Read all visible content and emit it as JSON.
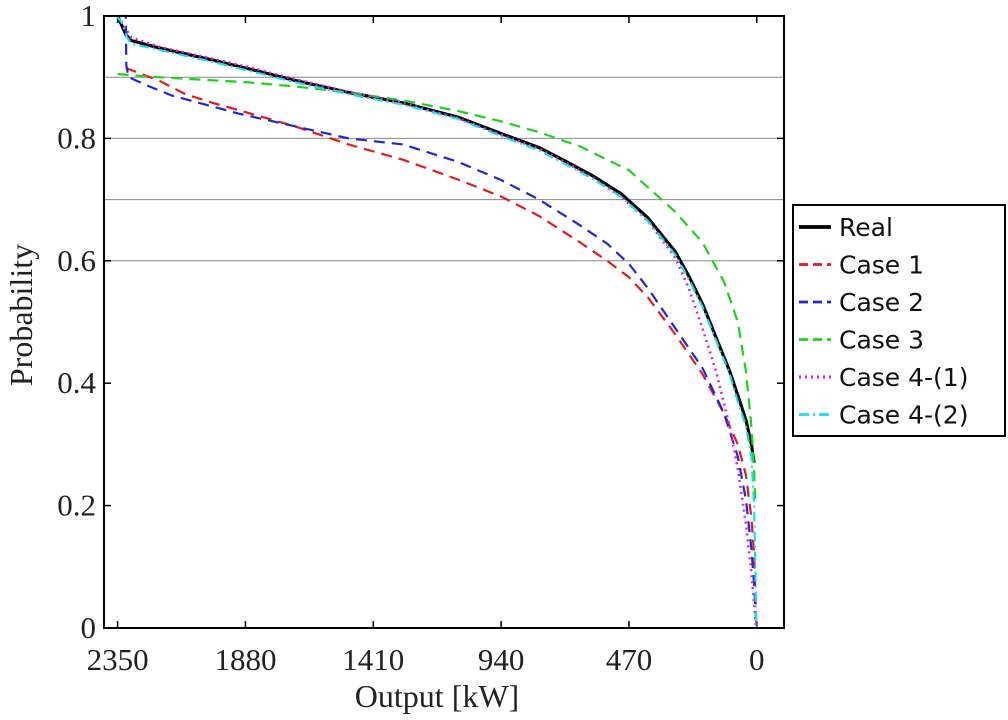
{
  "chart_data": {
    "type": "line",
    "title": "",
    "xlabel": "Output [kW]",
    "ylabel": "Probability",
    "xlim": [
      2400,
      -100
    ],
    "ylim": [
      0,
      1
    ],
    "x_reversed": true,
    "xticks": [
      2350,
      1880,
      1410,
      940,
      470,
      0
    ],
    "xtick_labels": [
      "2350",
      "1880",
      "1410",
      "940",
      "470",
      "0"
    ],
    "yticks": [
      0,
      0.2,
      0.4,
      0.6,
      0.8,
      1
    ],
    "ytick_labels": [
      "0",
      "0.2",
      "0.4",
      "0.6",
      "0.8",
      "1"
    ],
    "hlines": [
      0.6,
      0.7,
      0.8,
      0.9
    ],
    "legend_position": "right",
    "series": [
      {
        "name": "Real",
        "color": "#000000",
        "style": "solid",
        "points": [
          [
            2350,
            1.0
          ],
          [
            2340,
            0.99
          ],
          [
            2320,
            0.97
          ],
          [
            2300,
            0.96
          ],
          [
            2200,
            0.948
          ],
          [
            2100,
            0.938
          ],
          [
            2000,
            0.928
          ],
          [
            1880,
            0.915
          ],
          [
            1700,
            0.895
          ],
          [
            1500,
            0.875
          ],
          [
            1300,
            0.858
          ],
          [
            1100,
            0.835
          ],
          [
            940,
            0.808
          ],
          [
            800,
            0.785
          ],
          [
            700,
            0.762
          ],
          [
            600,
            0.738
          ],
          [
            500,
            0.71
          ],
          [
            400,
            0.67
          ],
          [
            300,
            0.615
          ],
          [
            250,
            0.575
          ],
          [
            200,
            0.53
          ],
          [
            150,
            0.475
          ],
          [
            100,
            0.42
          ],
          [
            70,
            0.38
          ],
          [
            40,
            0.34
          ],
          [
            20,
            0.3
          ],
          [
            10,
            0.27
          ]
        ]
      },
      {
        "name": "Case 1",
        "color": "#e8191c",
        "style": "dashed",
        "points": [
          [
            2320,
            0.915
          ],
          [
            2200,
            0.895
          ],
          [
            2100,
            0.872
          ],
          [
            2000,
            0.858
          ],
          [
            1880,
            0.843
          ],
          [
            1700,
            0.82
          ],
          [
            1500,
            0.79
          ],
          [
            1300,
            0.765
          ],
          [
            1100,
            0.733
          ],
          [
            940,
            0.705
          ],
          [
            800,
            0.673
          ],
          [
            650,
            0.63
          ],
          [
            550,
            0.6
          ],
          [
            470,
            0.573
          ],
          [
            400,
            0.54
          ],
          [
            300,
            0.48
          ],
          [
            200,
            0.415
          ],
          [
            120,
            0.35
          ],
          [
            70,
            0.3
          ],
          [
            40,
            0.25
          ],
          [
            20,
            0.18
          ],
          [
            10,
            0.12
          ],
          [
            5,
            0.06
          ],
          [
            2,
            0.0
          ]
        ]
      },
      {
        "name": "Case 2",
        "color": "#1e26e0",
        "style": "dashed",
        "points": [
          [
            2350,
            1.0
          ],
          [
            2320,
            1.0
          ],
          [
            2318,
            0.92
          ],
          [
            2310,
            0.9
          ],
          [
            2250,
            0.888
          ],
          [
            2150,
            0.87
          ],
          [
            2050,
            0.858
          ],
          [
            1900,
            0.84
          ],
          [
            1700,
            0.82
          ],
          [
            1500,
            0.8
          ],
          [
            1300,
            0.79
          ],
          [
            1100,
            0.762
          ],
          [
            940,
            0.732
          ],
          [
            800,
            0.7
          ],
          [
            650,
            0.658
          ],
          [
            550,
            0.628
          ],
          [
            470,
            0.595
          ],
          [
            400,
            0.555
          ],
          [
            300,
            0.49
          ],
          [
            200,
            0.425
          ],
          [
            120,
            0.35
          ],
          [
            70,
            0.28
          ],
          [
            40,
            0.21
          ],
          [
            20,
            0.13
          ],
          [
            8,
            0.06
          ],
          [
            2,
            0.0
          ]
        ]
      },
      {
        "name": "Case 3",
        "color": "#19d419",
        "style": "dashed",
        "points": [
          [
            2350,
            0.905
          ],
          [
            2200,
            0.9
          ],
          [
            2000,
            0.895
          ],
          [
            1880,
            0.892
          ],
          [
            1700,
            0.885
          ],
          [
            1500,
            0.875
          ],
          [
            1300,
            0.862
          ],
          [
            1100,
            0.845
          ],
          [
            940,
            0.828
          ],
          [
            800,
            0.81
          ],
          [
            650,
            0.787
          ],
          [
            550,
            0.765
          ],
          [
            470,
            0.748
          ],
          [
            400,
            0.72
          ],
          [
            300,
            0.68
          ],
          [
            200,
            0.63
          ],
          [
            120,
            0.565
          ],
          [
            70,
            0.5
          ],
          [
            40,
            0.42
          ],
          [
            20,
            0.33
          ],
          [
            10,
            0.26
          ],
          [
            5,
            0.2
          ]
        ]
      },
      {
        "name": "Case 4-(1)",
        "color": "#e21ee6",
        "style": "dotted",
        "points": [
          [
            2350,
            1.0
          ],
          [
            2300,
            0.965
          ],
          [
            2200,
            0.95
          ],
          [
            2100,
            0.94
          ],
          [
            2000,
            0.93
          ],
          [
            1880,
            0.918
          ],
          [
            1700,
            0.897
          ],
          [
            1500,
            0.876
          ],
          [
            1300,
            0.858
          ],
          [
            1100,
            0.833
          ],
          [
            940,
            0.806
          ],
          [
            800,
            0.783
          ],
          [
            700,
            0.76
          ],
          [
            600,
            0.735
          ],
          [
            500,
            0.705
          ],
          [
            400,
            0.665
          ],
          [
            300,
            0.605
          ],
          [
            250,
            0.555
          ],
          [
            200,
            0.49
          ],
          [
            150,
            0.42
          ],
          [
            100,
            0.33
          ],
          [
            70,
            0.26
          ],
          [
            40,
            0.17
          ],
          [
            20,
            0.09
          ],
          [
            8,
            0.03
          ],
          [
            3,
            0.0
          ]
        ]
      },
      {
        "name": "Case 4-(2)",
        "color": "#17e0e8",
        "style": "dashdot",
        "points": [
          [
            2355,
            1.0
          ],
          [
            2335,
            0.99
          ],
          [
            2315,
            0.965
          ],
          [
            2300,
            0.955
          ],
          [
            2200,
            0.945
          ],
          [
            2100,
            0.935
          ],
          [
            2000,
            0.925
          ],
          [
            1880,
            0.912
          ],
          [
            1700,
            0.892
          ],
          [
            1500,
            0.872
          ],
          [
            1300,
            0.855
          ],
          [
            1100,
            0.832
          ],
          [
            940,
            0.804
          ],
          [
            800,
            0.78
          ],
          [
            700,
            0.757
          ],
          [
            600,
            0.733
          ],
          [
            500,
            0.705
          ],
          [
            400,
            0.665
          ],
          [
            300,
            0.61
          ],
          [
            250,
            0.57
          ],
          [
            200,
            0.525
          ],
          [
            150,
            0.47
          ],
          [
            100,
            0.415
          ],
          [
            70,
            0.37
          ],
          [
            40,
            0.33
          ],
          [
            20,
            0.28
          ],
          [
            10,
            0.2
          ],
          [
            5,
            0.1
          ],
          [
            3,
            0.0
          ]
        ]
      }
    ]
  }
}
